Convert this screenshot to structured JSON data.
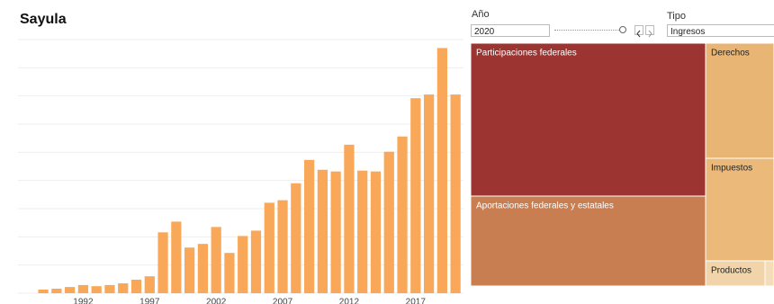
{
  "title": "Sayula",
  "controls": {
    "year_label": "Año",
    "year_value": "2020",
    "type_label": "Tipo",
    "type_value": "Ingresos"
  },
  "chart_data": [
    {
      "type": "bar",
      "x": [
        1989,
        1990,
        1991,
        1992,
        1993,
        1994,
        1995,
        1996,
        1997,
        1998,
        1999,
        2000,
        2001,
        2002,
        2003,
        2004,
        2005,
        2006,
        2007,
        2008,
        2009,
        2010,
        2011,
        2012,
        2013,
        2014,
        2015,
        2016,
        2017,
        2018,
        2019,
        2020
      ],
      "values": [
        0.13,
        0.16,
        0.22,
        0.29,
        0.25,
        0.29,
        0.35,
        0.48,
        0.6,
        2.16,
        2.54,
        1.62,
        1.75,
        2.35,
        1.43,
        2.03,
        2.22,
        3.21,
        3.3,
        3.9,
        4.73,
        4.38,
        4.32,
        5.27,
        4.35,
        4.32,
        5.02,
        5.56,
        6.92,
        7.05,
        8.7,
        7.05
      ],
      "color": "#f8a858",
      "xlim": [
        1987.1,
        2020.6
      ],
      "xticks": [
        1992,
        1997,
        2002,
        2007,
        2012,
        2017
      ],
      "ylim": [
        0,
        9
      ],
      "yticks": [
        0,
        1,
        2,
        3,
        4,
        5,
        6,
        7,
        8,
        9
      ],
      "grid": true
    },
    {
      "type": "treemap",
      "categories": [
        "Participaciones federales",
        "Aportaciones federales y estatales",
        "Derechos",
        "Impuestos",
        "Productos",
        null
      ],
      "values": [
        44370,
        26100,
        9728,
        8664,
        1848,
        280
      ],
      "colors": [
        "#9c3432",
        "#c97e51",
        "#e9b575",
        "#ebb979",
        "#f1d4a9",
        "#f4ddb7"
      ]
    }
  ]
}
